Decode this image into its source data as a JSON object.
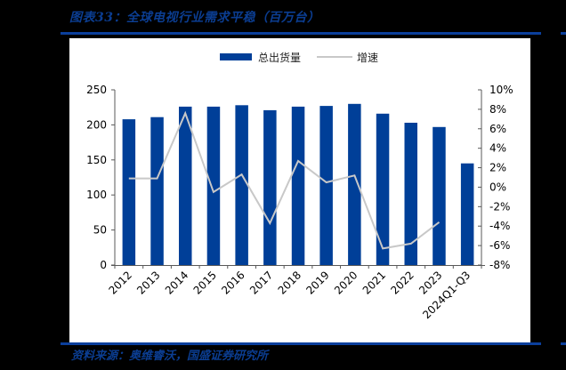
{
  "header": {
    "title": "图表33：全球电视行业需求平稳（百万台）"
  },
  "footer": {
    "source": "资料来源：奥维睿沃，国盛证券研究所"
  },
  "legend": {
    "bar_label": "总出货量",
    "line_label": "增速"
  },
  "colors": {
    "bar": "#003f98",
    "line": "#c8c8c8",
    "rule": "#0b3f9c",
    "title": "#0b3d91"
  },
  "chart_data": {
    "type": "bar+line",
    "title": "全球电视行业需求平稳（百万台）",
    "categories": [
      "2012",
      "2013",
      "2014",
      "2015",
      "2016",
      "2017",
      "2018",
      "2019",
      "2020",
      "2021",
      "2022",
      "2023",
      "2024Q1-Q3"
    ],
    "series": [
      {
        "name": "总出货量",
        "type": "bar",
        "axis": "left",
        "values": [
          208,
          211,
          226,
          226,
          228,
          221,
          226,
          227,
          230,
          216,
          203,
          197,
          145
        ]
      },
      {
        "name": "增速",
        "type": "line",
        "axis": "right",
        "unit": "%",
        "values": [
          0.9,
          0.9,
          7.6,
          -0.5,
          1.3,
          -3.7,
          2.7,
          0.5,
          1.2,
          -6.3,
          -5.8,
          -3.6,
          null
        ]
      }
    ],
    "left_axis": {
      "min": 0,
      "max": 250,
      "step": 50,
      "ticks": [
        "0",
        "50",
        "100",
        "150",
        "200",
        "250"
      ]
    },
    "right_axis": {
      "min": -8,
      "max": 10,
      "step": 2,
      "ticks": [
        "-8%",
        "-6%",
        "-4%",
        "-2%",
        "0%",
        "2%",
        "4%",
        "6%",
        "8%",
        "10%"
      ]
    },
    "xlabel": "",
    "ylabel": "",
    "grid": false,
    "legend_position": "top"
  }
}
